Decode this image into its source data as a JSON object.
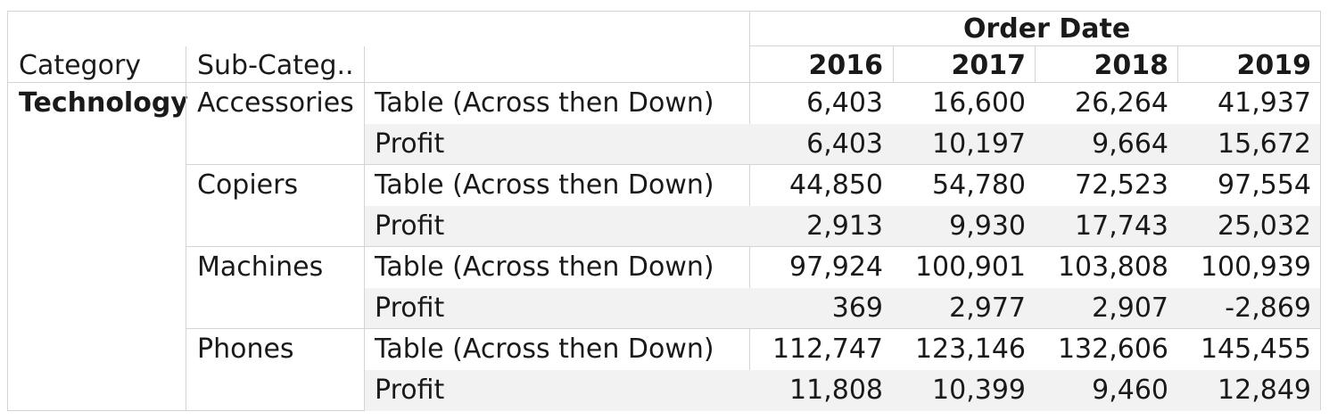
{
  "chart_data": {
    "type": "table",
    "column_group_label": "Order Date",
    "row_headers": [
      "Category",
      "Sub-Categ.."
    ],
    "columns": [
      "2016",
      "2017",
      "2018",
      "2019"
    ],
    "category": "Technology",
    "subcategories": [
      {
        "name": "Accessories",
        "measures": [
          {
            "label": "Table (Across then Down)",
            "values": [
              "6,403",
              "16,600",
              "26,264",
              "41,937"
            ]
          },
          {
            "label": "Profit",
            "values": [
              "6,403",
              "10,197",
              "9,664",
              "15,672"
            ]
          }
        ]
      },
      {
        "name": "Copiers",
        "measures": [
          {
            "label": "Table (Across then Down)",
            "values": [
              "44,850",
              "54,780",
              "72,523",
              "97,554"
            ]
          },
          {
            "label": "Profit",
            "values": [
              "2,913",
              "9,930",
              "17,743",
              "25,032"
            ]
          }
        ]
      },
      {
        "name": "Machines",
        "measures": [
          {
            "label": "Table (Across then Down)",
            "values": [
              "97,924",
              "100,901",
              "103,808",
              "100,939"
            ]
          },
          {
            "label": "Profit",
            "values": [
              "369",
              "2,977",
              "2,907",
              "-2,869"
            ]
          }
        ]
      },
      {
        "name": "Phones",
        "measures": [
          {
            "label": "Table (Across then Down)",
            "values": [
              "112,747",
              "123,146",
              "132,606",
              "145,455"
            ]
          },
          {
            "label": "Profit",
            "values": [
              "11,808",
              "10,399",
              "9,460",
              "12,849"
            ]
          }
        ]
      }
    ]
  },
  "colors": {
    "text": "#1a1a1a",
    "band": "#f2f2f2",
    "grid": "#d4d4d4"
  }
}
